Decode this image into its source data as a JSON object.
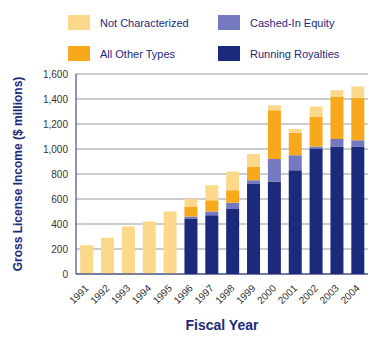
{
  "chart_data": {
    "type": "bar",
    "stacked": true,
    "grid": true,
    "legend": "top",
    "x_label": "Fiscal Year",
    "y_label": "Gross License Income ($ millions)",
    "categories": [
      "1991",
      "1992",
      "1993",
      "1994",
      "1995",
      "1996",
      "1997",
      "1998",
      "1999",
      "2000",
      "2001",
      "2002",
      "2003",
      "2004"
    ],
    "ylim": [
      0,
      1600
    ],
    "yticks": [
      0,
      200,
      400,
      600,
      800,
      {
        "value": 1000,
        "label": "1,000"
      },
      {
        "value": 1200,
        "label": "1,200"
      },
      {
        "value": 1400,
        "label": "1,400"
      },
      {
        "value": 1600,
        "label": "1,600"
      }
    ],
    "series": [
      {
        "name": "Running Royalties",
        "color": "#1c2a7c",
        "values": [
          0,
          0,
          0,
          0,
          0,
          440,
          470,
          520,
          720,
          740,
          830,
          1000,
          1020,
          1020
        ]
      },
      {
        "name": "Cashed-In Equity",
        "color": "#7579c0",
        "values": [
          0,
          0,
          0,
          0,
          0,
          20,
          30,
          50,
          30,
          180,
          120,
          20,
          60,
          50
        ]
      },
      {
        "name": "All Other Types",
        "color": "#f7a81b",
        "values": [
          0,
          0,
          0,
          0,
          0,
          80,
          90,
          100,
          110,
          390,
          180,
          240,
          340,
          340
        ]
      },
      {
        "name": "Not Characterized",
        "color": "#fcd98a",
        "values": [
          230,
          290,
          380,
          420,
          500,
          60,
          120,
          150,
          100,
          40,
          30,
          80,
          50,
          90
        ]
      }
    ]
  }
}
